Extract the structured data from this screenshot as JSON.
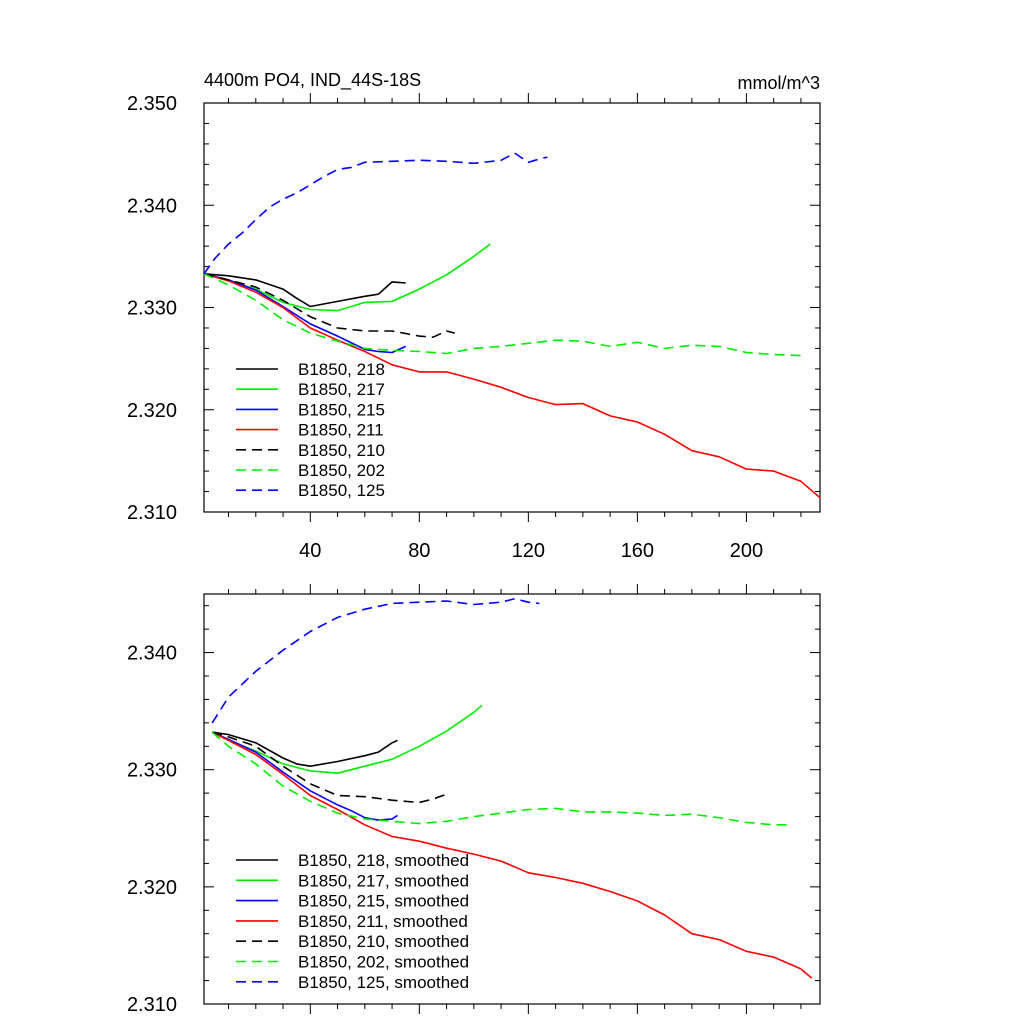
{
  "chart_data": [
    {
      "type": "line",
      "title": "4400m PO4, IND_44S-18S",
      "units": "mmol/m^3",
      "xlim": [
        1,
        227
      ],
      "ylim": [
        2.31,
        2.35
      ],
      "xticks": [
        40,
        80,
        120,
        160,
        200
      ],
      "yticks": [
        2.31,
        2.32,
        2.33,
        2.34,
        2.35
      ],
      "ytick_labels": [
        "2.310",
        "2.320",
        "2.330",
        "2.340",
        "2.350"
      ],
      "series": [
        {
          "name": "B1850, 218",
          "color": "#000000",
          "dash": "solid",
          "x": [
            1,
            10,
            20,
            30,
            35,
            40,
            50,
            60,
            65,
            70,
            75
          ],
          "y": [
            2.3333,
            2.3331,
            2.3327,
            2.3318,
            2.3309,
            2.3301,
            2.3306,
            2.3311,
            2.3313,
            2.3325,
            2.3324
          ]
        },
        {
          "name": "B1850, 217",
          "color": "#00ee00",
          "dash": "solid",
          "x": [
            1,
            10,
            20,
            30,
            40,
            50,
            60,
            70,
            80,
            90,
            100,
            106
          ],
          "y": [
            2.3333,
            2.3326,
            2.3318,
            2.3305,
            2.3298,
            2.3297,
            2.3305,
            2.3306,
            2.3318,
            2.3332,
            2.335,
            2.3362
          ]
        },
        {
          "name": "B1850, 215",
          "color": "#0000ff",
          "dash": "solid",
          "x": [
            1,
            10,
            20,
            30,
            40,
            50,
            60,
            65,
            70,
            75
          ],
          "y": [
            2.3333,
            2.3327,
            2.3317,
            2.3301,
            2.3284,
            2.3272,
            2.3259,
            2.3257,
            2.3256,
            2.3262
          ]
        },
        {
          "name": "B1850, 211",
          "color": "#ff0000",
          "dash": "solid",
          "x": [
            1,
            10,
            20,
            30,
            40,
            50,
            60,
            70,
            80,
            90,
            100,
            110,
            120,
            130,
            140,
            150,
            160,
            170,
            180,
            190,
            200,
            210,
            220,
            227
          ],
          "y": [
            2.3333,
            2.3326,
            2.3315,
            2.33,
            2.328,
            2.3268,
            2.3257,
            2.3244,
            2.3237,
            2.3237,
            2.323,
            2.3222,
            2.3212,
            2.3205,
            2.3206,
            2.3194,
            2.3188,
            2.3176,
            2.316,
            2.3154,
            2.3142,
            2.314,
            2.313,
            2.3114
          ]
        },
        {
          "name": "B1850, 210",
          "color": "#000000",
          "dash": "dashed",
          "x": [
            1,
            10,
            20,
            30,
            40,
            50,
            60,
            70,
            80,
            85,
            90,
            93
          ],
          "y": [
            2.3333,
            2.3327,
            2.332,
            2.3307,
            2.3291,
            2.328,
            2.3277,
            2.3277,
            2.3272,
            2.3271,
            2.3277,
            2.3275
          ]
        },
        {
          "name": "B1850, 202",
          "color": "#00ee00",
          "dash": "dashed",
          "x": [
            1,
            10,
            20,
            30,
            40,
            50,
            60,
            70,
            80,
            90,
            100,
            110,
            120,
            130,
            140,
            150,
            160,
            170,
            180,
            190,
            200,
            210,
            220
          ],
          "y": [
            2.3333,
            2.3322,
            2.3307,
            2.3288,
            2.3275,
            2.3267,
            2.326,
            2.3258,
            2.3257,
            2.3255,
            2.326,
            2.3262,
            2.3265,
            2.3268,
            2.3267,
            2.3262,
            2.3266,
            2.326,
            2.3263,
            2.3262,
            2.3256,
            2.3254,
            2.3253
          ]
        },
        {
          "name": "B1850, 125",
          "color": "#0000ff",
          "dash": "dashed",
          "x": [
            1,
            5,
            10,
            15,
            20,
            25,
            30,
            35,
            40,
            45,
            50,
            55,
            60,
            70,
            80,
            90,
            100,
            110,
            115,
            120,
            125,
            127
          ],
          "y": [
            2.3333,
            2.3348,
            2.3362,
            2.3373,
            2.3386,
            2.3398,
            2.3406,
            2.3412,
            2.342,
            2.3428,
            2.3435,
            2.3437,
            2.3442,
            2.3443,
            2.3444,
            2.3443,
            2.3441,
            2.3444,
            2.3451,
            2.3442,
            2.3446,
            2.3447
          ]
        }
      ],
      "legend": {
        "placement": "lower-left",
        "labels": [
          "B1850, 218",
          "B1850, 217",
          "B1850, 215",
          "B1850, 211",
          "B1850, 210",
          "B1850, 202",
          "B1850, 125"
        ]
      }
    },
    {
      "type": "line",
      "xlim": [
        1,
        227
      ],
      "ylim": [
        2.31,
        2.345
      ],
      "yticks": [
        2.31,
        2.32,
        2.33,
        2.34
      ],
      "ytick_labels": [
        "2.310",
        "2.320",
        "2.330",
        "2.340"
      ],
      "series": [
        {
          "name": "B1850, 218, smoothed",
          "color": "#000000",
          "dash": "solid",
          "x": [
            4,
            10,
            20,
            30,
            35,
            40,
            50,
            60,
            65,
            70,
            72
          ],
          "y": [
            2.3332,
            2.333,
            2.3323,
            2.331,
            2.3305,
            2.3303,
            2.3307,
            2.3312,
            2.3315,
            2.3323,
            2.3325
          ]
        },
        {
          "name": "B1850, 217, smoothed",
          "color": "#00ee00",
          "dash": "solid",
          "x": [
            4,
            10,
            20,
            30,
            40,
            50,
            60,
            70,
            80,
            90,
            100,
            103
          ],
          "y": [
            2.3332,
            2.3325,
            2.3316,
            2.3305,
            2.3299,
            2.3297,
            2.3303,
            2.3309,
            2.332,
            2.3333,
            2.3349,
            2.3355
          ]
        },
        {
          "name": "B1850, 215, smoothed",
          "color": "#0000ff",
          "dash": "solid",
          "x": [
            4,
            10,
            20,
            30,
            40,
            50,
            55,
            60,
            65,
            70,
            72
          ],
          "y": [
            2.3332,
            2.3326,
            2.3315,
            2.3298,
            2.3282,
            2.327,
            2.3265,
            2.3259,
            2.3257,
            2.3258,
            2.3261
          ]
        },
        {
          "name": "B1850, 211, smoothed",
          "color": "#ff0000",
          "dash": "solid",
          "x": [
            4,
            10,
            20,
            30,
            40,
            50,
            60,
            70,
            80,
            90,
            100,
            110,
            120,
            130,
            140,
            150,
            160,
            170,
            180,
            190,
            200,
            210,
            220,
            224
          ],
          "y": [
            2.3332,
            2.3325,
            2.3313,
            2.3296,
            2.3278,
            2.3266,
            2.3253,
            2.3243,
            2.3239,
            2.3233,
            2.3228,
            2.3222,
            2.3212,
            2.3208,
            2.3203,
            2.3196,
            2.3188,
            2.3176,
            2.316,
            2.3155,
            2.3145,
            2.314,
            2.313,
            2.3122
          ]
        },
        {
          "name": "B1850, 210, smoothed",
          "color": "#000000",
          "dash": "dashed",
          "x": [
            4,
            10,
            20,
            30,
            40,
            50,
            60,
            70,
            80,
            85,
            90
          ],
          "y": [
            2.3332,
            2.3328,
            2.332,
            2.3303,
            2.3288,
            2.3278,
            2.3277,
            2.3274,
            2.3272,
            2.3275,
            2.3279
          ]
        },
        {
          "name": "B1850, 202, smoothed",
          "color": "#00ee00",
          "dash": "dashed",
          "x": [
            4,
            10,
            20,
            30,
            40,
            50,
            60,
            70,
            80,
            90,
            100,
            110,
            120,
            130,
            140,
            150,
            160,
            170,
            180,
            190,
            200,
            210,
            217
          ],
          "y": [
            2.3332,
            2.332,
            2.3305,
            2.3286,
            2.3273,
            2.3263,
            2.3258,
            2.3256,
            2.3254,
            2.3256,
            2.326,
            2.3263,
            2.3266,
            2.3267,
            2.3264,
            2.3264,
            2.3263,
            2.3261,
            2.3262,
            2.3259,
            2.3255,
            2.3253,
            2.3253
          ]
        },
        {
          "name": "B1850, 125, smoothed",
          "color": "#0000ff",
          "dash": "dashed",
          "x": [
            4,
            10,
            20,
            30,
            40,
            50,
            60,
            70,
            80,
            90,
            100,
            110,
            115,
            120,
            124
          ],
          "y": [
            2.334,
            2.3362,
            2.3384,
            2.3402,
            2.3418,
            2.343,
            2.3437,
            2.3442,
            2.3443,
            2.3444,
            2.3441,
            2.3443,
            2.3446,
            2.3443,
            2.3442
          ]
        }
      ],
      "legend": {
        "placement": "lower-left",
        "labels": [
          "B1850, 218, smoothed",
          "B1850, 217, smoothed",
          "B1850, 215, smoothed",
          "B1850, 211, smoothed",
          "B1850, 210, smoothed",
          "B1850, 202, smoothed",
          "B1850, 125, smoothed"
        ]
      }
    }
  ]
}
